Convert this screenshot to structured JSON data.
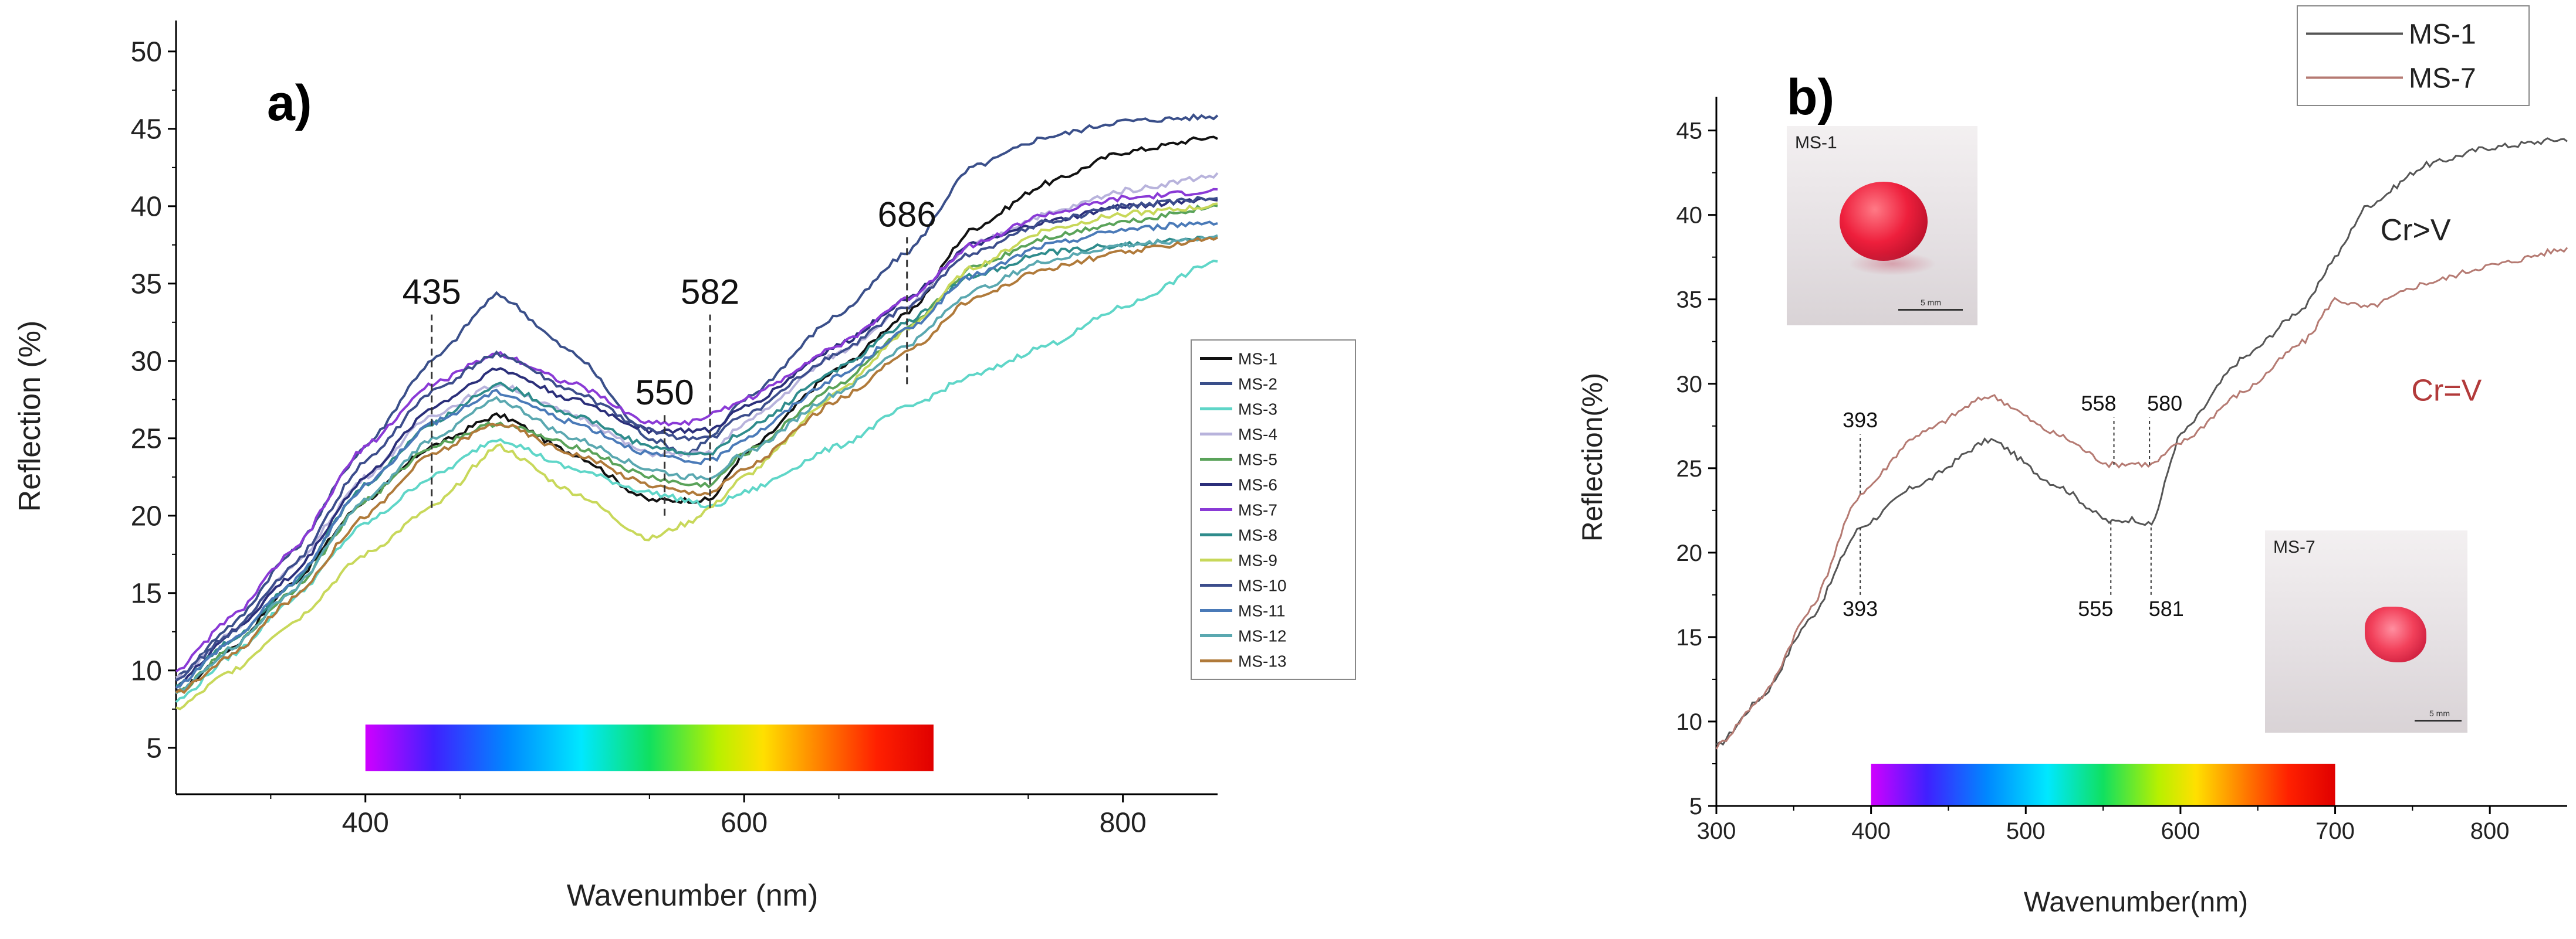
{
  "chart_data": [
    {
      "type": "line",
      "panel_label": "a)",
      "title": "",
      "xlabel": "Wavenumber (nm)",
      "ylabel": "Reflection (%)",
      "xlim": [
        300,
        850
      ],
      "ylim": [
        2,
        52
      ],
      "x_ticks": [
        400,
        600,
        800
      ],
      "y_ticks": [
        5,
        10,
        15,
        20,
        25,
        30,
        35,
        40,
        45,
        50
      ],
      "x": [
        300,
        330,
        360,
        400,
        435,
        470,
        510,
        550,
        570,
        582,
        600,
        650,
        686,
        720,
        760,
        800,
        850
      ],
      "series": [
        {
          "name": "MS-1",
          "color": "#111111",
          "values": [
            8.5,
            11.5,
            15.5,
            21.0,
            24.5,
            26.5,
            24.0,
            21.0,
            21.0,
            21.0,
            24.0,
            29.5,
            33.0,
            38.5,
            41.5,
            43.5,
            44.5
          ]
        },
        {
          "name": "MS-2",
          "color": "#3a4f8a",
          "values": [
            9.5,
            13.0,
            17.5,
            24.5,
            30.0,
            34.3,
            30.5,
            25.0,
            24.0,
            25.0,
            27.5,
            33.0,
            37.0,
            42.5,
            44.5,
            45.5,
            45.8
          ]
        },
        {
          "name": "MS-3",
          "color": "#5fd6c8",
          "values": [
            8.0,
            11.0,
            14.5,
            19.5,
            22.5,
            25.0,
            23.0,
            21.5,
            21.0,
            20.5,
            21.5,
            24.5,
            27.0,
            29.0,
            31.0,
            33.5,
            36.5
          ]
        },
        {
          "name": "MS-4",
          "color": "#b8b3dc",
          "values": [
            9.5,
            12.5,
            16.5,
            22.5,
            26.5,
            28.5,
            26.5,
            24.0,
            24.0,
            24.0,
            26.0,
            30.5,
            33.5,
            37.5,
            39.5,
            41.0,
            42.0
          ]
        },
        {
          "name": "MS-5",
          "color": "#5aa35a",
          "values": [
            8.5,
            11.5,
            15.0,
            21.0,
            24.5,
            26.0,
            24.5,
            22.5,
            22.0,
            22.0,
            24.0,
            28.5,
            32.0,
            36.0,
            38.0,
            39.0,
            40.0
          ]
        },
        {
          "name": "MS-6",
          "color": "#2b2f7a",
          "values": [
            9.0,
            12.5,
            16.0,
            22.5,
            27.0,
            29.5,
            27.5,
            25.5,
            25.5,
            25.5,
            27.0,
            31.0,
            34.0,
            37.5,
            39.0,
            40.0,
            40.5
          ]
        },
        {
          "name": "MS-7",
          "color": "#8a3ad6",
          "values": [
            10.0,
            13.5,
            17.5,
            24.5,
            28.5,
            30.5,
            28.5,
            26.0,
            26.0,
            26.5,
            27.5,
            31.0,
            34.0,
            37.5,
            39.5,
            40.5,
            41.0
          ]
        },
        {
          "name": "MS-8",
          "color": "#2f8c8c",
          "values": [
            9.0,
            12.0,
            15.5,
            22.0,
            26.0,
            28.5,
            26.5,
            24.5,
            24.0,
            24.0,
            25.5,
            29.5,
            32.5,
            35.5,
            37.0,
            37.5,
            38.0
          ]
        },
        {
          "name": "MS-9",
          "color": "#c8d85a",
          "values": [
            7.5,
            10.0,
            13.0,
            17.5,
            20.5,
            24.5,
            21.5,
            18.5,
            19.5,
            20.5,
            22.5,
            28.0,
            32.0,
            36.0,
            38.5,
            39.5,
            40.0
          ]
        },
        {
          "name": "MS-10",
          "color": "#3c4d8c",
          "values": [
            9.5,
            12.5,
            16.5,
            23.5,
            28.0,
            30.5,
            28.0,
            25.5,
            25.0,
            25.0,
            26.5,
            30.5,
            33.5,
            37.0,
            39.0,
            40.0,
            40.5
          ]
        },
        {
          "name": "MS-11",
          "color": "#4a7ab8",
          "values": [
            9.0,
            12.0,
            15.5,
            22.0,
            26.0,
            28.0,
            26.0,
            24.0,
            23.5,
            23.5,
            25.0,
            29.0,
            32.0,
            35.5,
            37.5,
            38.5,
            39.0
          ]
        },
        {
          "name": "MS-12",
          "color": "#5aa8b0",
          "values": [
            8.5,
            11.5,
            15.0,
            21.0,
            25.0,
            27.5,
            25.0,
            23.0,
            22.5,
            22.5,
            24.0,
            28.0,
            31.0,
            34.5,
            36.5,
            37.5,
            38.0
          ]
        },
        {
          "name": "MS-13",
          "color": "#b07a3a",
          "values": [
            8.5,
            11.0,
            14.5,
            20.0,
            24.0,
            26.0,
            24.0,
            22.0,
            21.5,
            21.5,
            23.0,
            27.5,
            30.5,
            34.0,
            36.0,
            37.0,
            38.0
          ]
        }
      ],
      "annotations": [
        {
          "label": "435",
          "x": 435,
          "y_from": 20.5,
          "y_to": 33.0
        },
        {
          "label": "550",
          "x": 558,
          "y_from": 20.0,
          "y_to": 26.5
        },
        {
          "label": "582",
          "x": 582,
          "y_from": 20.5,
          "y_to": 33.0
        },
        {
          "label": "686",
          "x": 686,
          "y_from": 28.5,
          "y_to": 38.0
        }
      ],
      "spectrum_bar": {
        "x_start": 400,
        "x_end": 700,
        "y_bottom": 3.5,
        "y_top": 6.5
      },
      "legend_position": "right"
    },
    {
      "type": "line",
      "panel_label": "b)",
      "title": "",
      "xlabel": "Wavenumber(nm)",
      "ylabel": "Reflection(%)",
      "xlim": [
        300,
        850
      ],
      "ylim": [
        5,
        47
      ],
      "x_ticks": [
        300,
        400,
        500,
        600,
        700,
        800
      ],
      "y_ticks": [
        5,
        10,
        15,
        20,
        25,
        30,
        35,
        40,
        45
      ],
      "x": [
        300,
        330,
        360,
        393,
        430,
        477,
        520,
        555,
        570,
        581,
        600,
        640,
        680,
        700,
        720,
        760,
        800,
        850
      ],
      "series": [
        {
          "name": "MS-1",
          "color": "#555555",
          "values": [
            8.5,
            11.5,
            16.0,
            21.5,
            24.0,
            26.7,
            24.0,
            21.8,
            22.0,
            21.6,
            27.0,
            31.5,
            34.5,
            37.5,
            40.5,
            43.0,
            44.0,
            44.5
          ]
        },
        {
          "name": "MS-7",
          "color": "#b57a72",
          "values": [
            8.5,
            11.5,
            16.5,
            23.5,
            27.0,
            29.3,
            27.0,
            25.2,
            25.3,
            25.2,
            26.5,
            29.5,
            32.5,
            35.0,
            34.5,
            36.0,
            37.0,
            38.0
          ]
        }
      ],
      "annotations": [
        {
          "label": "393",
          "x": 393,
          "y_from": 23.5,
          "y_to": 27.0,
          "placement": "above"
        },
        {
          "label": "393",
          "x": 393,
          "y_from": 17.5,
          "y_to": 21.5,
          "placement": "below"
        },
        {
          "label": "558",
          "x": 557,
          "y_from": 25.2,
          "y_to": 28.0,
          "placement": "above"
        },
        {
          "label": "580",
          "x": 580,
          "y_from": 25.2,
          "y_to": 28.0,
          "placement": "above"
        },
        {
          "label": "555",
          "x": 555,
          "y_from": 17.5,
          "y_to": 21.8,
          "placement": "below"
        },
        {
          "label": "581",
          "x": 581,
          "y_from": 17.5,
          "y_to": 21.6,
          "placement": "below"
        }
      ],
      "text_notes": [
        {
          "text": "Cr>V",
          "x": 752,
          "y": 38.5,
          "color": "#222222"
        },
        {
          "text": "Cr=V",
          "x": 772,
          "y": 29.0,
          "color": "#b23a3a"
        }
      ],
      "spectrum_bar": {
        "x_start": 400,
        "x_end": 700,
        "y_bottom": 5.0,
        "y_top": 7.5
      },
      "legend_position": "top-right",
      "photos": [
        {
          "caption": "MS-1",
          "scale_text": "5 mm"
        },
        {
          "caption": "MS-7",
          "scale_text": "5 mm"
        }
      ]
    }
  ]
}
